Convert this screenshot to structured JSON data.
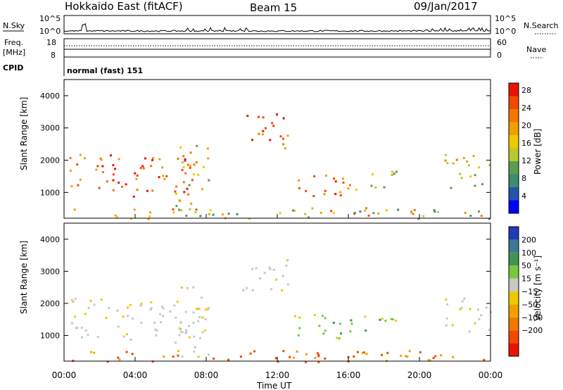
{
  "header": {
    "station": "Hokkaido East (fitACF)",
    "beam": "Beam 15",
    "date": "09/Jan/2017"
  },
  "side_labels": {
    "nsky": "N.Sky",
    "nsearch": "N.Search",
    "freq": "Freq.",
    "freq_unit": "[MHz]",
    "nave": "Nave",
    "cpid": "CPID",
    "cpid_value": "normal (fast) 151"
  },
  "noise_panel": {
    "left_ticks": [
      "10^5",
      "10^0"
    ],
    "right_ticks": [
      "10^5",
      "10^0"
    ]
  },
  "freq_panel": {
    "left_ticks": [
      "18",
      "8"
    ],
    "right_ticks": [
      "60",
      "0"
    ]
  },
  "chart_data": [
    {
      "type": "heatmap",
      "name": "power",
      "ylabel": "Slant Range [km]",
      "yticks": [
        "1000",
        "2000",
        "3000",
        "4000"
      ],
      "ylim": [
        200,
        4500
      ],
      "colorbar_label": "Power [dB]",
      "colorbar_ticks": [
        "4",
        "8",
        "12",
        "16",
        "20",
        "24",
        "28"
      ],
      "colorbar_colors": [
        "#0000ff",
        "#2255aa",
        "#3c8c6e",
        "#5a9e50",
        "#b8c832",
        "#f0c800",
        "#f0a000",
        "#f07800",
        "#f04a00",
        "#e81400"
      ],
      "regions": [
        {
          "t": [
            0.3,
            7.6
          ],
          "r": [
            900,
            2200
          ],
          "level": "high"
        },
        {
          "t": [
            6.2,
            8.2
          ],
          "r": [
            300,
            2600
          ],
          "level": "mid"
        },
        {
          "t": [
            10.0,
            12.6
          ],
          "r": [
            2400,
            3500
          ],
          "level": "high"
        },
        {
          "t": [
            12.8,
            15.8
          ],
          "r": [
            900,
            1700
          ],
          "level": "high"
        },
        {
          "t": [
            15.8,
            18.8
          ],
          "r": [
            1100,
            1700
          ],
          "level": "mid"
        },
        {
          "t": [
            21.4,
            24.0
          ],
          "r": [
            1100,
            2200
          ],
          "level": "mid"
        },
        {
          "t": [
            0.0,
            24.0
          ],
          "r": [
            200,
            550
          ],
          "level": "low"
        }
      ]
    },
    {
      "type": "heatmap",
      "name": "velocity",
      "ylabel": "Slant Range [km]",
      "yticks": [
        "1000",
        "2000",
        "3000",
        "4000"
      ],
      "ylim": [
        200,
        4500
      ],
      "colorbar_label": "Velocity [m s⁻¹]",
      "colorbar_ticks": [
        "200",
        "100",
        "50",
        "15",
        "−15",
        "−50",
        "−100",
        "−200"
      ],
      "colorbar_colors": [
        "#1e3cb4",
        "#3c7896",
        "#3c9650",
        "#78c83c",
        "#c8c8c8",
        "#f0c800",
        "#f0a000",
        "#f07800",
        "#f04a00",
        "#e81400"
      ],
      "xlabel": "Time UT",
      "xticks": [
        "00:00",
        "04:00",
        "08:00",
        "12:00",
        "16:00",
        "20:00",
        "00:00"
      ]
    }
  ]
}
